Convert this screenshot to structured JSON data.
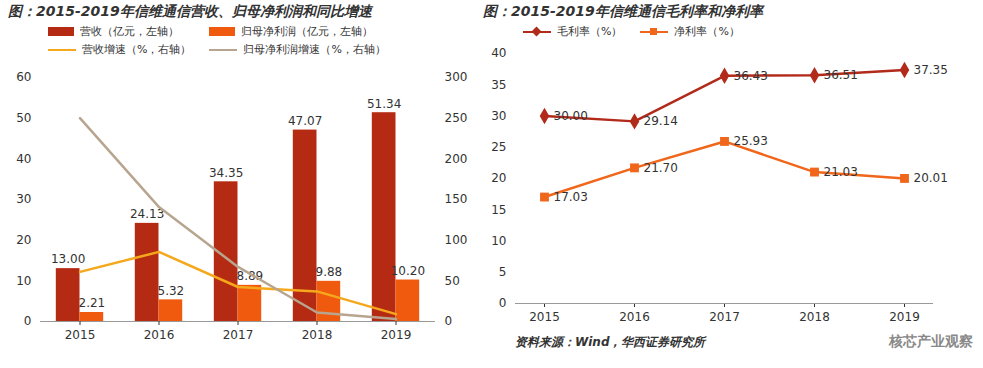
{
  "chart_data": [
    {
      "type": "bar",
      "title": "图：2015-2019年信维通信营收、归母净利润和同比增速",
      "categories": [
        "2015",
        "2016",
        "2017",
        "2018",
        "2019"
      ],
      "series": [
        {
          "name": "营收（亿元，左轴）",
          "type": "bar",
          "color": "#B52A12",
          "values": [
            13.0,
            24.13,
            34.35,
            47.07,
            51.34
          ],
          "value_labels": [
            "13.00",
            "24.13",
            "34.35",
            "47.07",
            "51.34"
          ]
        },
        {
          "name": "归母净利润（亿元，左轴）",
          "type": "bar",
          "color": "#F05A0E",
          "values": [
            2.21,
            5.32,
            8.89,
            9.88,
            10.2
          ],
          "value_labels": [
            "2.21",
            "5.32",
            "8.89",
            "9.88",
            "10.20"
          ]
        },
        {
          "name": "营收增速（%，右轴）",
          "type": "line",
          "axis": "y2",
          "color": "#F5A81C",
          "values": [
            61,
            85.6,
            42.4,
            37,
            9.1
          ]
        },
        {
          "name": "归母净利润增速（%，右轴）",
          "type": "line",
          "axis": "y2",
          "color": "#B8A58F",
          "values": [
            250,
            140.7,
            67.1,
            11.1,
            3.2
          ]
        }
      ],
      "ylim": [
        0,
        60
      ],
      "yticks": [
        0,
        10,
        20,
        30,
        40,
        50,
        60
      ],
      "y2lim": [
        0,
        300
      ],
      "y2ticks": [
        0,
        50,
        100,
        150,
        200,
        250,
        300
      ],
      "data_labels": true,
      "grid": false,
      "legend": "top"
    },
    {
      "type": "line",
      "title": "图：2015-2019年信维通信毛利率和净利率",
      "categories": [
        "2015",
        "2016",
        "2017",
        "2018",
        "2019"
      ],
      "series": [
        {
          "name": "毛利率（%）",
          "color": "#B22A1A",
          "marker": "diamond",
          "values": [
            30.0,
            29.14,
            36.43,
            36.51,
            37.35
          ],
          "value_labels": [
            "30.00",
            "29.14",
            "36.43",
            "36.51",
            "37.35"
          ]
        },
        {
          "name": "净利率（%）",
          "color": "#F0661A",
          "marker": "square",
          "values": [
            17.03,
            21.7,
            25.93,
            21.03,
            20.01
          ],
          "value_labels": [
            "17.03",
            "21.70",
            "25.93",
            "21.03",
            "20.01"
          ]
        }
      ],
      "ylim": [
        0,
        40
      ],
      "yticks": [
        0,
        5,
        10,
        15,
        20,
        25,
        30,
        35,
        40
      ],
      "data_labels": true,
      "grid": false,
      "legend": "top"
    }
  ],
  "source": "资料来源：Wind，华西证券研究所",
  "watermark": "核芯产业观察"
}
